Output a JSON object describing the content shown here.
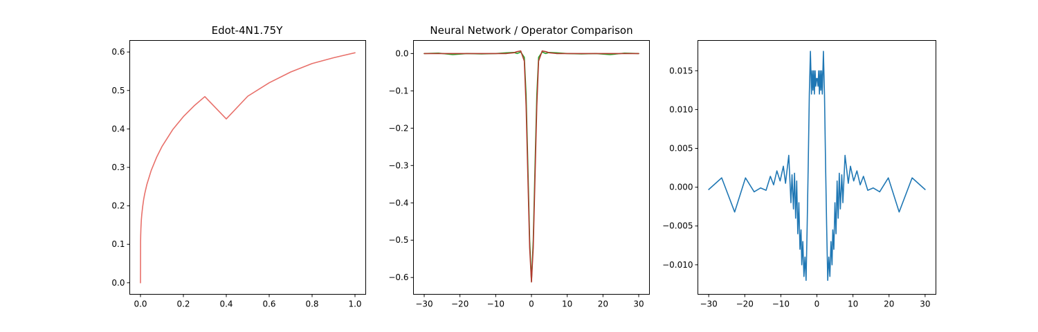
{
  "chart_data": [
    {
      "type": "line",
      "title": "Edot-4N1.75Y",
      "xlabel": "",
      "ylabel": "",
      "xlim": [
        -0.05,
        1.05
      ],
      "ylim": [
        -0.03,
        0.63
      ],
      "xticks": [
        0.0,
        0.2,
        0.4,
        0.6,
        0.8,
        1.0
      ],
      "xticklabels": [
        "0.0",
        "0.2",
        "0.4",
        "0.6",
        "0.8",
        "1.0"
      ],
      "yticks": [
        0.0,
        0.1,
        0.2,
        0.3,
        0.4,
        0.5,
        0.6
      ],
      "yticklabels": [
        "0.0",
        "0.1",
        "0.2",
        "0.3",
        "0.4",
        "0.5",
        "0.6"
      ],
      "grid": false,
      "series": [
        {
          "color": "#e8706a",
          "x": [
            0.0,
            0.0005,
            0.001,
            0.002,
            0.004,
            0.006,
            0.01,
            0.015,
            0.02,
            0.03,
            0.05,
            0.075,
            0.1,
            0.15,
            0.2,
            0.25,
            0.3,
            0.4,
            0.5,
            0.6,
            0.7,
            0.8,
            0.9,
            1.0
          ],
          "y": [
            0.0,
            0.106,
            0.122,
            0.141,
            0.163,
            0.177,
            0.197,
            0.217,
            0.232,
            0.256,
            0.292,
            0.326,
            0.354,
            0.398,
            0.432,
            0.46,
            0.484,
            0.426,
            0.485,
            0.52,
            0.548,
            0.57,
            0.585,
            0.598
          ]
        }
      ]
    },
    {
      "type": "line",
      "title": "Neural Network / Operator Comparison",
      "xlabel": "",
      "ylabel": "",
      "xlim": [
        -33,
        33
      ],
      "ylim": [
        -0.645,
        0.035
      ],
      "xticks": [
        -30,
        -20,
        -10,
        0,
        10,
        20,
        30
      ],
      "xticklabels": [
        "−30",
        "−20",
        "−10",
        "0",
        "10",
        "20",
        "30"
      ],
      "yticks": [
        0.0,
        -0.1,
        -0.2,
        -0.3,
        -0.4,
        -0.5,
        -0.6
      ],
      "yticklabels": [
        "0.0",
        "−0.1",
        "−0.2",
        "−0.3",
        "−0.4",
        "−0.5",
        "−0.6"
      ],
      "grid": false,
      "series": [
        {
          "color": "#2ca02c",
          "x": [
            -30,
            -26,
            -22,
            -18,
            -14,
            -10,
            -7,
            -5,
            -4,
            -3,
            -2,
            -1.5,
            -1,
            -0.5,
            0,
            0.5,
            1,
            1.5,
            2,
            3,
            4,
            5,
            7,
            10,
            14,
            18,
            22,
            26,
            30
          ],
          "y": [
            0.0,
            0.001,
            -0.003,
            0.0,
            -0.001,
            0.0,
            0.002,
            0.003,
            0.0,
            0.004,
            -0.01,
            -0.11,
            -0.3,
            -0.5,
            -0.61,
            -0.5,
            -0.3,
            -0.11,
            -0.01,
            0.004,
            0.0,
            0.003,
            0.002,
            0.0,
            -0.001,
            0.0,
            -0.003,
            0.001,
            0.0
          ]
        },
        {
          "color": "#b03a2e",
          "x": [
            -30,
            -26,
            -22,
            -18,
            -14,
            -10,
            -7,
            -5,
            -4,
            -3,
            -2,
            -1.5,
            -1,
            -0.5,
            0,
            0.5,
            1,
            1.5,
            2,
            3,
            4,
            5,
            7,
            10,
            14,
            18,
            22,
            26,
            30
          ],
          "y": [
            0.0,
            0.0,
            0.0,
            0.0,
            0.0,
            0.0,
            0.0,
            0.002,
            0.005,
            0.007,
            -0.02,
            -0.14,
            -0.33,
            -0.52,
            -0.612,
            -0.52,
            -0.33,
            -0.14,
            -0.02,
            0.007,
            0.005,
            0.002,
            0.0,
            0.0,
            0.0,
            0.0,
            0.0,
            0.0,
            0.0
          ]
        }
      ]
    },
    {
      "type": "line",
      "title": "",
      "xlabel": "",
      "ylabel": "",
      "xlim": [
        -33,
        33
      ],
      "ylim": [
        -0.0138,
        0.0189
      ],
      "xticks": [
        -30,
        -20,
        -10,
        0,
        10,
        20,
        30
      ],
      "xticklabels": [
        "−30",
        "−20",
        "−10",
        "0",
        "10",
        "20",
        "30"
      ],
      "yticks": [
        0.015,
        0.01,
        0.005,
        0.0,
        -0.005,
        -0.01
      ],
      "yticklabels": [
        "0.015",
        "0.010",
        "0.005",
        "0.000",
        "−0.005",
        "−0.010"
      ],
      "grid": false,
      "series": [
        {
          "color": "#1f77b4",
          "x": [
            -30,
            -26.4,
            -22.8,
            -19.8,
            -17.4,
            -15.6,
            -14.1,
            -12.9,
            -12,
            -11.1,
            -10.2,
            -9.3,
            -8.7,
            -7.8,
            -7.2,
            -6.9,
            -6.5,
            -6.2,
            -5.9,
            -5.6,
            -5.3,
            -5.0,
            -4.7,
            -4.4,
            -4.2,
            -3.9,
            -3.6,
            -3.3,
            -3.0,
            -2.7,
            -2.4,
            -2.1,
            -1.8,
            -1.5,
            -1.3,
            -1.1,
            -0.9,
            -0.7,
            -0.5,
            -0.3,
            -0.1,
            0.1,
            0.3,
            0.5,
            0.7,
            0.9,
            1.1,
            1.3,
            1.5,
            1.8,
            2.1,
            2.4,
            2.7,
            3.0,
            3.3,
            3.6,
            3.9,
            4.2,
            4.4,
            4.7,
            5.0,
            5.3,
            5.6,
            5.9,
            6.2,
            6.5,
            6.9,
            7.2,
            7.8,
            8.7,
            9.3,
            10.2,
            11.1,
            12,
            12.9,
            14.1,
            15.6,
            17.4,
            19.8,
            22.8,
            26.4,
            30
          ],
          "y": [
            -0.0003,
            0.0012,
            -0.0032,
            0.0012,
            -0.0006,
            -0.0001,
            -0.0004,
            0.0014,
            0.0003,
            0.0021,
            0.0008,
            0.0027,
            0.0005,
            0.0041,
            -0.002,
            0.0016,
            -0.0028,
            0.0018,
            -0.004,
            0.0008,
            -0.006,
            -0.002,
            -0.008,
            -0.0055,
            -0.01,
            -0.007,
            -0.0115,
            -0.009,
            -0.012,
            -0.005,
            0.003,
            0.012,
            0.0175,
            0.012,
            0.015,
            0.0125,
            0.015,
            0.012,
            0.015,
            0.013,
            0.014,
            0.014,
            0.013,
            0.015,
            0.012,
            0.015,
            0.0125,
            0.015,
            0.012,
            0.0175,
            0.012,
            0.003,
            -0.005,
            -0.012,
            -0.009,
            -0.0115,
            -0.007,
            -0.01,
            -0.0055,
            -0.008,
            -0.002,
            -0.006,
            0.0008,
            -0.004,
            0.0018,
            -0.0028,
            0.0016,
            -0.002,
            0.0041,
            0.0005,
            0.0027,
            0.0008,
            0.0021,
            0.0003,
            0.0014,
            -0.0004,
            -0.0001,
            -0.0006,
            0.0012,
            -0.0032,
            0.0012,
            -0.0003
          ]
        }
      ]
    }
  ]
}
